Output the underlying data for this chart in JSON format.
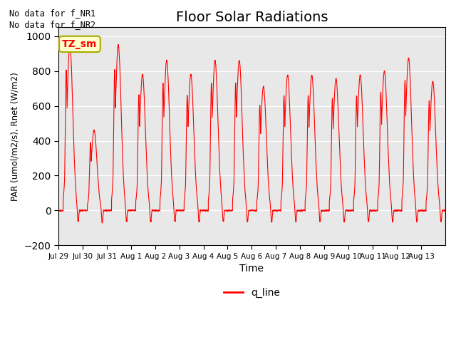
{
  "title": "Floor Solar Radiations",
  "xlabel": "Time",
  "ylabel": "PAR (umol/m2/s), Rnet (W/m2)",
  "ylim": [
    -200,
    1050
  ],
  "yticks": [
    -200,
    0,
    200,
    400,
    600,
    800,
    1000
  ],
  "xtick_labels": [
    "Jul 29",
    "Jul 30",
    "Jul 31",
    "Aug 1",
    "Aug 2",
    "Aug 3",
    "Aug 4",
    "Aug 5",
    "Aug 6",
    "Aug 7",
    "Aug 8",
    "Aug 9",
    "Aug 10",
    "Aug 11",
    "Aug 12",
    "Aug 13"
  ],
  "line_color": "red",
  "line_label": "q_line",
  "legend_box_color": "#ffffcc",
  "legend_box_edge": "#cccc00",
  "no_data_text1": "No data for f_NR1",
  "no_data_text2": "No data for f_NR2",
  "legend_label": "TZ_sm",
  "bg_color": "#e8e8e8",
  "title_fontsize": 14,
  "day_peaks": [
    950,
    460,
    950,
    780,
    860,
    780,
    860,
    860,
    710,
    775,
    775,
    755,
    775,
    800,
    875,
    740
  ]
}
